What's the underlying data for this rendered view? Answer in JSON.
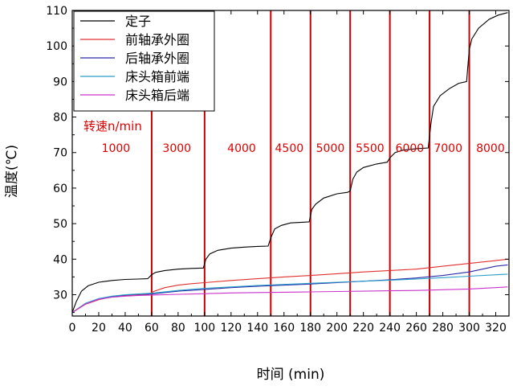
{
  "chart_data": {
    "type": "line",
    "xlabel": "时间 (min)",
    "ylabel": "温度(℃)",
    "xlim": [
      0,
      330
    ],
    "ylim": [
      24,
      110
    ],
    "xticks": [
      0,
      20,
      40,
      60,
      80,
      100,
      120,
      140,
      160,
      180,
      200,
      220,
      240,
      260,
      280,
      300,
      320
    ],
    "yticks": [
      30,
      40,
      50,
      60,
      70,
      80,
      90,
      100,
      110
    ],
    "speed_title": "转速n/min",
    "speed_boundaries": [
      60,
      100,
      150,
      180,
      210,
      240,
      270,
      300
    ],
    "speed_boundary_color": "#cc0000",
    "speed_labels": [
      {
        "label": "1000",
        "x": 33
      },
      {
        "label": "3000",
        "x": 79
      },
      {
        "label": "4000",
        "x": 128
      },
      {
        "label": "4500",
        "x": 164
      },
      {
        "label": "5000",
        "x": 195
      },
      {
        "label": "5500",
        "x": 225
      },
      {
        "label": "6000",
        "x": 255
      },
      {
        "label": "7000",
        "x": 284
      },
      {
        "label": "8000",
        "x": 316
      }
    ],
    "legend_position": "top-left",
    "series": [
      {
        "name": "定子",
        "color": "#000000",
        "points": [
          [
            0,
            25
          ],
          [
            3,
            28
          ],
          [
            7,
            31
          ],
          [
            12,
            32.5
          ],
          [
            20,
            33.5
          ],
          [
            30,
            34
          ],
          [
            40,
            34.3
          ],
          [
            50,
            34.4
          ],
          [
            57,
            34.5
          ],
          [
            60,
            35.6
          ],
          [
            63,
            36.3
          ],
          [
            70,
            36.8
          ],
          [
            80,
            37.2
          ],
          [
            90,
            37.4
          ],
          [
            99,
            37.5
          ],
          [
            101,
            40
          ],
          [
            104,
            41.5
          ],
          [
            110,
            42.5
          ],
          [
            120,
            43.1
          ],
          [
            130,
            43.4
          ],
          [
            140,
            43.6
          ],
          [
            148,
            43.7
          ],
          [
            150,
            46
          ],
          [
            153,
            48.5
          ],
          [
            158,
            49.5
          ],
          [
            165,
            50.2
          ],
          [
            175,
            50.4
          ],
          [
            179,
            50.5
          ],
          [
            181,
            54
          ],
          [
            184,
            55.5
          ],
          [
            190,
            57.2
          ],
          [
            200,
            58.4
          ],
          [
            208,
            58.8
          ],
          [
            210,
            59.2
          ],
          [
            212,
            62.5
          ],
          [
            215,
            64.5
          ],
          [
            220,
            65.8
          ],
          [
            230,
            66.8
          ],
          [
            238,
            67.3
          ],
          [
            240,
            68.5
          ],
          [
            244,
            70
          ],
          [
            250,
            70.7
          ],
          [
            260,
            71.1
          ],
          [
            269,
            71.3
          ],
          [
            271,
            78
          ],
          [
            273,
            83
          ],
          [
            278,
            86
          ],
          [
            285,
            88
          ],
          [
            292,
            89.5
          ],
          [
            298,
            90
          ],
          [
            300,
            99
          ],
          [
            302,
            102
          ],
          [
            307,
            105
          ],
          [
            315,
            107.5
          ],
          [
            322,
            108.7
          ],
          [
            329,
            109.4
          ]
        ]
      },
      {
        "name": "前轴承外圈",
        "color": "#e03030",
        "points": [
          [
            0,
            25
          ],
          [
            10,
            27.3
          ],
          [
            20,
            28.6
          ],
          [
            30,
            29.4
          ],
          [
            40,
            29.8
          ],
          [
            50,
            30
          ],
          [
            58,
            30.1
          ],
          [
            62,
            31
          ],
          [
            70,
            32
          ],
          [
            80,
            32.7
          ],
          [
            90,
            33.1
          ],
          [
            100,
            33.4
          ],
          [
            120,
            34
          ],
          [
            140,
            34.5
          ],
          [
            160,
            35
          ],
          [
            180,
            35.4
          ],
          [
            200,
            35.9
          ],
          [
            220,
            36.4
          ],
          [
            240,
            36.8
          ],
          [
            260,
            37.2
          ],
          [
            280,
            38
          ],
          [
            300,
            38.8
          ],
          [
            320,
            39.6
          ],
          [
            329,
            40
          ]
        ]
      },
      {
        "name": "后轴承外圈",
        "color": "#2a2aa8",
        "points": [
          [
            0,
            25
          ],
          [
            10,
            27.5
          ],
          [
            20,
            28.8
          ],
          [
            30,
            29.5
          ],
          [
            40,
            29.9
          ],
          [
            50,
            30.1
          ],
          [
            60,
            30.2
          ],
          [
            70,
            30.6
          ],
          [
            80,
            31
          ],
          [
            100,
            31.5
          ],
          [
            120,
            32
          ],
          [
            140,
            32.4
          ],
          [
            160,
            32.7
          ],
          [
            180,
            33
          ],
          [
            200,
            33.4
          ],
          [
            220,
            33.8
          ],
          [
            240,
            34.2
          ],
          [
            260,
            34.7
          ],
          [
            280,
            35.4
          ],
          [
            300,
            36.4
          ],
          [
            310,
            37.2
          ],
          [
            320,
            38
          ],
          [
            329,
            38.4
          ]
        ]
      },
      {
        "name": "床头箱前端",
        "color": "#2a9ec8",
        "points": [
          [
            0,
            25
          ],
          [
            10,
            27.6
          ],
          [
            20,
            28.9
          ],
          [
            30,
            29.6
          ],
          [
            40,
            30
          ],
          [
            50,
            30.2
          ],
          [
            60,
            30.4
          ],
          [
            80,
            31.2
          ],
          [
            100,
            31.8
          ],
          [
            120,
            32.2
          ],
          [
            140,
            32.6
          ],
          [
            160,
            32.9
          ],
          [
            180,
            33.2
          ],
          [
            200,
            33.5
          ],
          [
            220,
            33.8
          ],
          [
            240,
            34.1
          ],
          [
            260,
            34.4
          ],
          [
            280,
            34.8
          ],
          [
            300,
            35.2
          ],
          [
            320,
            35.6
          ],
          [
            329,
            35.8
          ]
        ]
      },
      {
        "name": "床头箱后端",
        "color": "#cc33cc",
        "points": [
          [
            0,
            25
          ],
          [
            10,
            27.4
          ],
          [
            20,
            28.7
          ],
          [
            30,
            29.3
          ],
          [
            40,
            29.6
          ],
          [
            50,
            29.8
          ],
          [
            60,
            29.9
          ],
          [
            80,
            30.1
          ],
          [
            100,
            30.3
          ],
          [
            120,
            30.5
          ],
          [
            140,
            30.6
          ],
          [
            160,
            30.7
          ],
          [
            180,
            30.8
          ],
          [
            200,
            30.9
          ],
          [
            220,
            31
          ],
          [
            240,
            31.1
          ],
          [
            260,
            31.2
          ],
          [
            280,
            31.4
          ],
          [
            300,
            31.6
          ],
          [
            320,
            32
          ],
          [
            329,
            32.2
          ]
        ]
      }
    ]
  }
}
